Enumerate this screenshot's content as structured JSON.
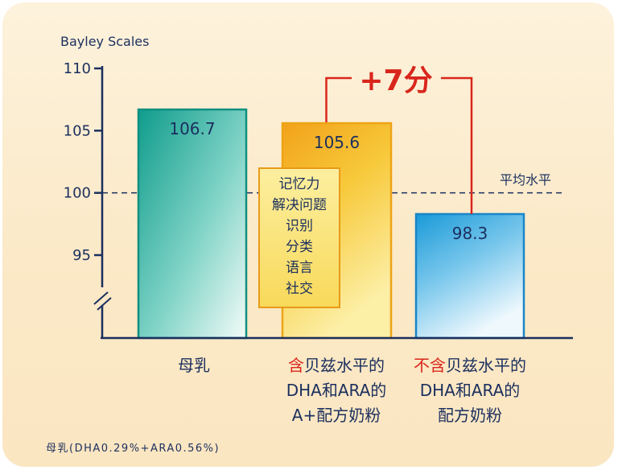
{
  "chart_data": {
    "type": "bar",
    "ylabel": "Bayley Scales",
    "ylim": [
      95,
      110
    ],
    "axis_break": true,
    "yticks": [
      110,
      105,
      100,
      95
    ],
    "reference_line": {
      "value": 100,
      "label": "平均水平"
    },
    "categories": [
      {
        "lines": [
          [
            {
              "t": "母乳",
              "red": false
            }
          ]
        ]
      },
      {
        "lines": [
          [
            {
              "t": "含",
              "red": true
            },
            {
              "t": "贝兹水平的",
              "red": false
            }
          ],
          [
            {
              "t": "DHA和ARA的",
              "red": false
            }
          ],
          [
            {
              "t": "A+配方奶粉",
              "red": false
            }
          ]
        ]
      },
      {
        "lines": [
          [
            {
              "t": "不含",
              "red": true
            },
            {
              "t": "贝兹水平的",
              "red": false
            }
          ],
          [
            {
              "t": "DHA和ARA的",
              "red": false
            }
          ],
          [
            {
              "t": "配方奶粉",
              "red": false
            }
          ]
        ]
      }
    ],
    "values": [
      106.7,
      105.6,
      98.3
    ],
    "value_labels": [
      "106.7",
      "105.6",
      "98.3"
    ],
    "bar_colors": [
      "teal",
      "gold",
      "blue"
    ],
    "annotation": {
      "text": "+7分",
      "from": 1,
      "to": 2
    },
    "inset_box": {
      "lines": [
        "记忆力",
        "解决问题",
        "识别",
        "分类",
        "语言",
        "社交"
      ]
    },
    "footnote": "母乳(DHA0.29%+ARA0.56%)",
    "colors": {
      "axis": "#1b2f5e",
      "text": "#1b2f5e",
      "accent_red": "#d9261c",
      "background": "#fbeacb"
    }
  }
}
